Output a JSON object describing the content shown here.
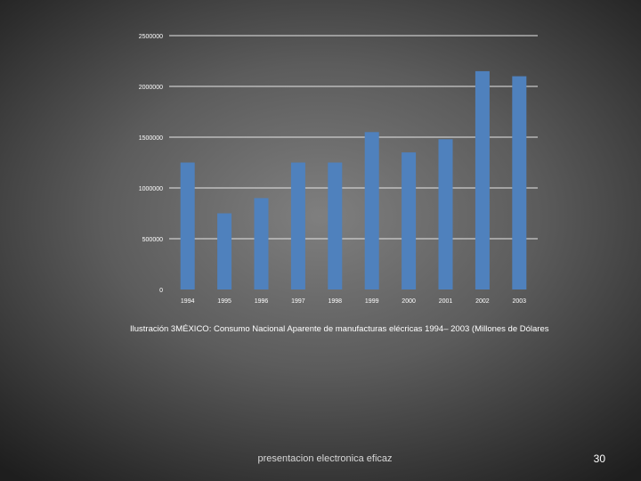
{
  "chart_data": {
    "type": "bar",
    "categories": [
      "1994",
      "1995",
      "1996",
      "1997",
      "1998",
      "1999",
      "2000",
      "2001",
      "2002",
      "2003"
    ],
    "values": [
      1250000,
      750000,
      900000,
      1250000,
      1250000,
      1550000,
      1350000,
      1480000,
      2150000,
      2100000
    ],
    "ylim": [
      0,
      2500000
    ],
    "yticks": [
      "0",
      "500000",
      "1000000",
      "1500000",
      "2000000",
      "2500000"
    ],
    "grid": true,
    "legend": "none",
    "bar_color": "#4f81bd"
  },
  "caption": "Ilustración 3MÉXICO: Consumo Nacional Aparente de manufacturas elécricas 1994– 2003 (Millones de Dólares",
  "footer": "presentacion electronica eficaz",
  "slide_number": "30"
}
